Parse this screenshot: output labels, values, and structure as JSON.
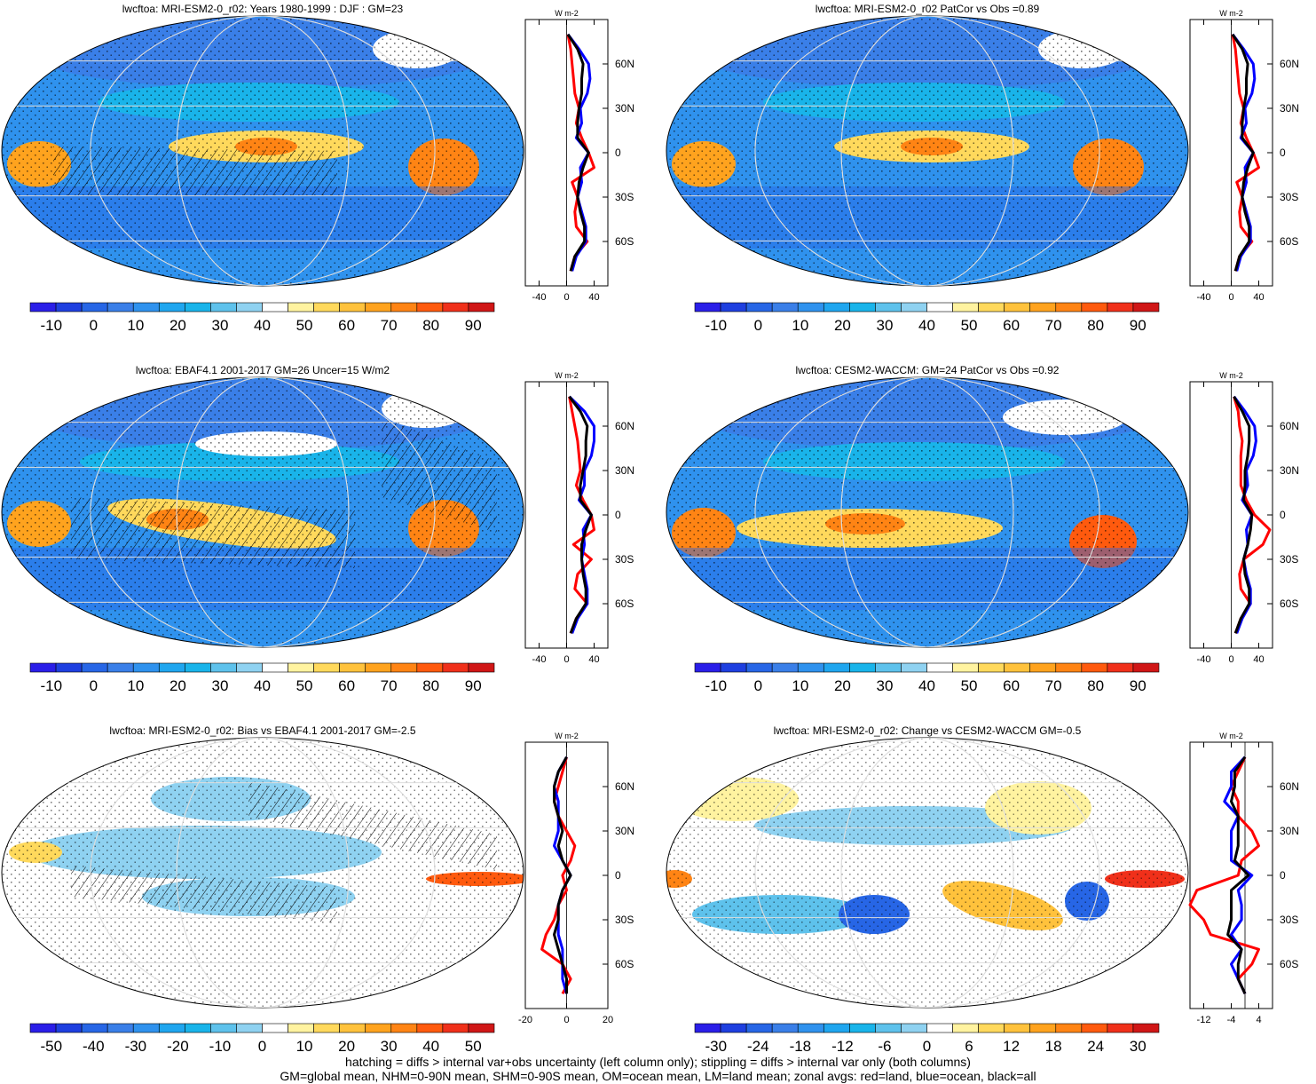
{
  "colors": {
    "blue_to_red": [
      "#2a1ee8",
      "#1e3fe0",
      "#2766e6",
      "#3a7fe8",
      "#2f92ee",
      "#1fa6ef",
      "#19b4ea",
      "#5ec2ec",
      "#8fd2f1",
      "#ffffff",
      "#fff3a0",
      "#ffd95c",
      "#ffc23c",
      "#ffa31e",
      "#ff8414",
      "#ff5a0e",
      "#f0301a",
      "#d01616"
    ],
    "zonal_land": "#ff0000",
    "zonal_ocean": "#0000ff",
    "zonal_all": "#000000"
  },
  "chart_data": [
    {
      "type": "heatmap",
      "title": "lwcftoa: MRI-ESM2-0_r02: Years 1980-1999 : DJF : GM=23",
      "colorbar_labels": [
        "-10",
        "0",
        "10",
        "20",
        "30",
        "40",
        "50",
        "60",
        "70",
        "80",
        "90"
      ],
      "colorbar_range": [
        -15,
        95
      ],
      "zonal": {
        "units_label": "W m-2",
        "x_ticks": [
          "-40",
          "0",
          "40"
        ],
        "x_range": [
          -60,
          60
        ],
        "lat_ticks": [
          "60N",
          "30N",
          "0",
          "30S",
          "60S"
        ],
        "lat": [
          80,
          70,
          60,
          50,
          40,
          30,
          20,
          10,
          0,
          -10,
          -20,
          -30,
          -40,
          -50,
          -60,
          -70,
          -80
        ],
        "land": [
          2,
          6,
          8,
          10,
          12,
          18,
          14,
          22,
          32,
          40,
          8,
          16,
          12,
          14,
          30,
          12,
          6
        ],
        "ocean": [
          2,
          18,
          32,
          34,
          30,
          20,
          22,
          14,
          32,
          20,
          22,
          16,
          22,
          28,
          28,
          14,
          8
        ],
        "all": [
          2,
          16,
          24,
          22,
          22,
          18,
          16,
          16,
          32,
          24,
          18,
          16,
          20,
          26,
          26,
          12,
          6
        ]
      }
    },
    {
      "type": "heatmap",
      "title": "lwcftoa: MRI-ESM2-0_r02 PatCor vs Obs =0.89",
      "colorbar_labels": [
        "-10",
        "0",
        "10",
        "20",
        "30",
        "40",
        "50",
        "60",
        "70",
        "80",
        "90"
      ],
      "colorbar_range": [
        -15,
        95
      ],
      "zonal": {
        "units_label": "W m-2",
        "x_ticks": [
          "-40",
          "0",
          "40"
        ],
        "x_range": [
          -60,
          60
        ],
        "lat_ticks": [
          "60N",
          "30N",
          "0",
          "30S",
          "60S"
        ],
        "lat": [
          80,
          70,
          60,
          50,
          40,
          30,
          20,
          10,
          0,
          -10,
          -20,
          -30,
          -40,
          -50,
          -60,
          -70,
          -80
        ],
        "land": [
          2,
          6,
          8,
          10,
          12,
          18,
          14,
          22,
          32,
          40,
          8,
          16,
          12,
          14,
          30,
          12,
          6
        ],
        "ocean": [
          2,
          18,
          32,
          34,
          30,
          20,
          22,
          14,
          32,
          20,
          22,
          16,
          22,
          28,
          28,
          14,
          8
        ],
        "all": [
          2,
          16,
          24,
          22,
          22,
          18,
          16,
          16,
          32,
          24,
          18,
          16,
          20,
          26,
          26,
          12,
          6
        ]
      }
    },
    {
      "type": "heatmap",
      "title": "lwcftoa: EBAF4.1 2001-2017 GM=26 Uncer=15 W/m2",
      "colorbar_labels": [
        "-10",
        "0",
        "10",
        "20",
        "30",
        "40",
        "50",
        "60",
        "70",
        "80",
        "90"
      ],
      "colorbar_range": [
        -15,
        95
      ],
      "zonal": {
        "units_label": "W m-2",
        "x_ticks": [
          "-40",
          "0",
          "40"
        ],
        "x_range": [
          -60,
          60
        ],
        "lat_ticks": [
          "60N",
          "30N",
          "0",
          "30S",
          "60S"
        ],
        "lat": [
          80,
          70,
          60,
          50,
          40,
          30,
          20,
          10,
          0,
          -10,
          -20,
          -30,
          -40,
          -50,
          -60,
          -70,
          -80
        ],
        "land": [
          4,
          8,
          12,
          16,
          18,
          20,
          14,
          24,
          36,
          40,
          10,
          36,
          16,
          12,
          30,
          14,
          6
        ],
        "ocean": [
          4,
          26,
          40,
          40,
          36,
          26,
          26,
          18,
          36,
          24,
          26,
          22,
          26,
          30,
          30,
          16,
          8
        ],
        "all": [
          4,
          20,
          30,
          28,
          28,
          24,
          20,
          20,
          36,
          28,
          22,
          22,
          24,
          28,
          28,
          14,
          6
        ]
      }
    },
    {
      "type": "heatmap",
      "title": "lwcftoa: CESM2-WACCM: GM=24 PatCor vs Obs =0.92",
      "colorbar_labels": [
        "-10",
        "0",
        "10",
        "20",
        "30",
        "40",
        "50",
        "60",
        "70",
        "80",
        "90"
      ],
      "colorbar_range": [
        -15,
        95
      ],
      "zonal": {
        "units_label": "W m-2",
        "x_ticks": [
          "-40",
          "0",
          "40"
        ],
        "x_range": [
          -60,
          60
        ],
        "lat_ticks": [
          "60N",
          "30N",
          "0",
          "30S",
          "60S"
        ],
        "lat": [
          80,
          70,
          60,
          50,
          40,
          30,
          20,
          10,
          0,
          -10,
          -20,
          -30,
          -40,
          -50,
          -60,
          -70,
          -80
        ],
        "land": [
          4,
          10,
          12,
          16,
          14,
          14,
          14,
          22,
          34,
          56,
          46,
          18,
          12,
          14,
          28,
          14,
          6
        ],
        "ocean": [
          4,
          20,
          34,
          36,
          32,
          22,
          24,
          16,
          30,
          22,
          24,
          18,
          22,
          28,
          28,
          16,
          8
        ],
        "all": [
          4,
          16,
          26,
          26,
          24,
          20,
          20,
          18,
          30,
          28,
          24,
          18,
          20,
          26,
          26,
          14,
          6
        ]
      }
    },
    {
      "type": "heatmap",
      "title": "lwcftoa: MRI-ESM2-0_r02: Bias vs EBAF4.1 2001-2017 GM=-2.5",
      "colorbar_labels": [
        "-50",
        "-40",
        "-30",
        "-20",
        "-10",
        "0",
        "10",
        "20",
        "30",
        "40",
        "50"
      ],
      "colorbar_range": [
        -55,
        55
      ],
      "zonal": {
        "units_label": "W m-2",
        "x_ticks": [
          "-20",
          "0",
          "20"
        ],
        "x_range": [
          -20,
          20
        ],
        "lat_ticks": [
          "60N",
          "30N",
          "0",
          "30S",
          "60S"
        ],
        "lat": [
          80,
          70,
          60,
          50,
          40,
          30,
          20,
          10,
          0,
          -10,
          -20,
          -30,
          -40,
          -50,
          -60,
          -70,
          -80
        ],
        "land": [
          0,
          -2,
          -4,
          -6,
          -4,
          0,
          4,
          2,
          -2,
          0,
          -4,
          -6,
          -10,
          -12,
          -2,
          2,
          -2
        ],
        "ocean": [
          0,
          -4,
          -6,
          -4,
          -4,
          -4,
          -6,
          -2,
          2,
          -2,
          -4,
          -4,
          -4,
          -2,
          -2,
          -2,
          0
        ],
        "all": [
          0,
          -4,
          -6,
          -6,
          -4,
          -2,
          -4,
          -2,
          2,
          -2,
          -4,
          -4,
          -6,
          -4,
          -2,
          0,
          0
        ]
      }
    },
    {
      "type": "heatmap",
      "title": "lwcftoa: MRI-ESM2-0_r02: Change vs CESM2-WACCM GM=-0.5",
      "colorbar_labels": [
        "-30",
        "-24",
        "-18",
        "-12",
        "-6",
        "0",
        "6",
        "12",
        "18",
        "24",
        "30"
      ],
      "colorbar_range": [
        -33,
        33
      ],
      "zonal": {
        "units_label": "W m-2",
        "x_ticks": [
          "-12",
          "-4",
          "4"
        ],
        "x_range": [
          -16,
          8
        ],
        "lat_ticks": [
          "60N",
          "30N",
          "0",
          "30S",
          "60S"
        ],
        "lat": [
          80,
          70,
          60,
          50,
          40,
          30,
          20,
          10,
          0,
          -10,
          -20,
          -30,
          -40,
          -50,
          -60,
          -70,
          -80
        ],
        "land": [
          0,
          -2,
          -4,
          -2,
          -2,
          2,
          4,
          -1,
          -2,
          -14,
          -16,
          -12,
          -10,
          4,
          2,
          -2,
          0
        ],
        "ocean": [
          0,
          -4,
          -4,
          -6,
          -2,
          -4,
          -4,
          -4,
          2,
          -2,
          -1,
          -1,
          -4,
          -1,
          -4,
          -2,
          0
        ],
        "all": [
          0,
          -3,
          -3,
          -4,
          -2,
          -2,
          -2,
          -3,
          1,
          -4,
          -4,
          -4,
          -5,
          -1,
          -2,
          -2,
          0
        ]
      }
    }
  ],
  "footer": {
    "line1": "hatching = diffs > internal var+obs uncertainty (left column only); stippling = diffs > internal var only (both columns)",
    "line2": "GM=global mean, NHM=0-90N mean, SHM=0-90S mean, OM=ocean mean, LM=land mean; zonal avgs: red=land, blue=ocean, black=all"
  }
}
